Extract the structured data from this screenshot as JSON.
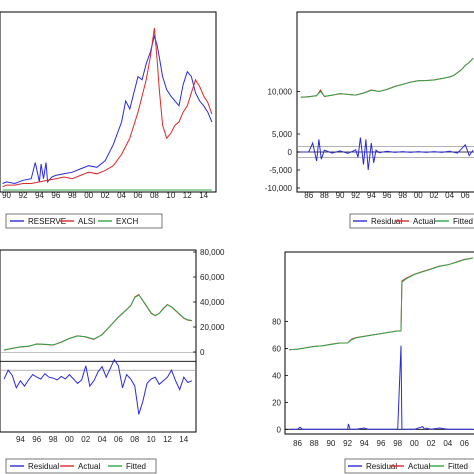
{
  "chart_data": [
    {
      "type": "line",
      "x_ticks": [
        "90",
        "92",
        "94",
        "96",
        "98",
        "00",
        "02",
        "04",
        "06",
        "08",
        "10",
        "12",
        "14"
      ],
      "x_tick_labels": [
        "90",
        "92",
        "94",
        "96",
        "98",
        "00",
        "02",
        "04",
        "06",
        "08",
        "10",
        "12",
        "14"
      ],
      "series": [
        {
          "name": "RESERVE",
          "color": "#2b2bd6",
          "x": [
            1989.5,
            1990,
            1991,
            1992,
            1993,
            1993.5,
            1994,
            1994.2,
            1994.5,
            1994.8,
            1995,
            1995.5,
            1996,
            1997,
            1998,
            1999,
            2000,
            2001,
            2002,
            2003,
            2003.5,
            2004,
            2004.5,
            2005,
            2005.5,
            2006,
            2006.5,
            2007,
            2007.5,
            2008,
            2008.3,
            2008.6,
            2009,
            2009.5,
            2010,
            2010.5,
            2011,
            2011.5,
            2012,
            2012.5,
            2013,
            2013.5,
            2014,
            2014.5,
            2015
          ],
          "y": [
            0.04,
            0.05,
            0.04,
            0.06,
            0.07,
            0.17,
            0.05,
            0.16,
            0.07,
            0.17,
            0.05,
            0.08,
            0.09,
            0.1,
            0.11,
            0.13,
            0.15,
            0.14,
            0.18,
            0.28,
            0.35,
            0.42,
            0.55,
            0.5,
            0.6,
            0.7,
            0.68,
            0.78,
            0.85,
            0.95,
            0.9,
            0.82,
            0.7,
            0.62,
            0.58,
            0.55,
            0.52,
            0.65,
            0.73,
            0.7,
            0.6,
            0.55,
            0.52,
            0.48,
            0.42
          ]
        },
        {
          "name": "ALSI",
          "color": "#d62b2b",
          "x": [
            1989.5,
            1990,
            1991,
            1992,
            1993,
            1994,
            1995,
            1996,
            1997,
            1998,
            1999,
            2000,
            2001,
            2002,
            2003,
            2004,
            2005,
            2006,
            2007,
            2007.5,
            2008,
            2008.3,
            2008.6,
            2009,
            2009.5,
            2010,
            2010.5,
            2011,
            2011.5,
            2012,
            2012.5,
            2013,
            2013.5,
            2014,
            2014.5,
            2015
          ],
          "y": [
            0.02,
            0.03,
            0.03,
            0.04,
            0.04,
            0.05,
            0.06,
            0.07,
            0.08,
            0.07,
            0.09,
            0.11,
            0.1,
            0.12,
            0.15,
            0.22,
            0.32,
            0.48,
            0.68,
            0.82,
            1.0,
            0.82,
            0.62,
            0.4,
            0.32,
            0.35,
            0.4,
            0.42,
            0.48,
            0.52,
            0.6,
            0.68,
            0.64,
            0.58,
            0.54,
            0.47
          ]
        },
        {
          "name": "EXCH",
          "color": "#2fa84a",
          "x": [
            1989.5,
            2015
          ],
          "y": [
            0.0,
            0.0
          ]
        }
      ]
    },
    {
      "type": "line",
      "y_ticks": [
        10000,
        5000,
        0,
        -5000,
        -10000
      ],
      "y_tick_labels": [
        "10,000",
        "5,000",
        "0",
        "-5,000",
        "-10,000"
      ],
      "x_ticks": [
        "86",
        "88",
        "90",
        "92",
        "94",
        "96",
        "98",
        "00",
        "02",
        "04",
        "06"
      ],
      "x_tick_labels": [
        "86",
        "88",
        "90",
        "92",
        "94",
        "96",
        "98",
        "00",
        "02",
        "04",
        "06"
      ],
      "series": [
        {
          "name": "Residual",
          "color": "#2b2bd6",
          "x": [
            1985,
            1986,
            1986.5,
            1987,
            1987.3,
            1987.6,
            1988,
            1989,
            1990,
            1991,
            1992,
            1992.3,
            1992.6,
            1993,
            1993.3,
            1993.6,
            1994,
            1994.3,
            1994.6,
            1995,
            1996,
            1997,
            1998,
            1999,
            2000,
            2001,
            2002,
            2003,
            2004,
            2005,
            2006,
            2006.5,
            2007
          ],
          "y": [
            0,
            0,
            2500,
            -2500,
            3500,
            -2000,
            500,
            -300,
            300,
            -400,
            600,
            -1500,
            4000,
            -3500,
            3500,
            -5000,
            2500,
            -3000,
            500,
            -200,
            200,
            -100,
            100,
            -100,
            100,
            -100,
            100,
            -100,
            200,
            -300,
            2000,
            -1000,
            500
          ]
        },
        {
          "name": "Actual",
          "color": "#d62b2b",
          "x": [
            1985,
            1986,
            1987,
            1987.5,
            1988,
            1989,
            1990,
            1991,
            1992,
            1993,
            1994,
            1995,
            1996,
            1997,
            1998,
            1999,
            2000,
            2001,
            2002,
            2003,
            2004,
            2004.5,
            2005,
            2005.5,
            2006,
            2006.5,
            2007
          ],
          "y": [
            9200,
            9300,
            9400,
            10200,
            9300,
            9500,
            9700,
            9600,
            9500,
            9800,
            10200,
            10000,
            10300,
            10700,
            11000,
            11300,
            11500,
            11500,
            11600,
            11800,
            12000,
            12200,
            12600,
            13000,
            13600,
            14000,
            14600
          ]
        },
        {
          "name": "Fitted",
          "color": "#2fa84a",
          "x": [
            1985,
            1986,
            1987,
            1987.5,
            1988,
            1989,
            1990,
            1991,
            1992,
            1993,
            1994,
            1995,
            1996,
            1997,
            1998,
            1999,
            2000,
            2001,
            2002,
            2003,
            2004,
            2004.5,
            2005,
            2005.5,
            2006,
            2006.5,
            2007
          ],
          "y": [
            9200,
            9250,
            9450,
            10000,
            9350,
            9480,
            9720,
            9580,
            9520,
            9780,
            10150,
            10020,
            10280,
            10680,
            10980,
            11280,
            11480,
            11520,
            11580,
            11780,
            12020,
            12180,
            12580,
            12980,
            13580,
            14020,
            14560
          ]
        }
      ]
    },
    {
      "type": "line",
      "y_ticks": [
        80000,
        60000,
        40000,
        20000,
        0
      ],
      "y_tick_labels": [
        "80,000",
        "60,000",
        "40,000",
        "20,000",
        "0"
      ],
      "x_ticks": [
        "94",
        "96",
        "98",
        "00",
        "02",
        "04",
        "06",
        "08",
        "10",
        "12",
        "14"
      ],
      "x_tick_labels": [
        "94",
        "96",
        "98",
        "00",
        "02",
        "04",
        "06",
        "08",
        "10",
        "12",
        "14"
      ],
      "series": [
        {
          "name": "Residual",
          "color": "#2b2bd6",
          "x": [
            1992,
            1992.5,
            1993,
            1993.5,
            1994,
            1994.5,
            1995,
            1995.5,
            1996,
            1996.5,
            1997,
            1997.5,
            1998,
            1998.5,
            1999,
            1999.5,
            2000,
            2000.5,
            2001,
            2001.5,
            2002,
            2002.5,
            2003,
            2003.5,
            2004,
            2004.5,
            2005,
            2005.5,
            2006,
            2006.5,
            2007,
            2007.5,
            2008,
            2008.5,
            2009,
            2009.5,
            2010,
            2010.5,
            2011,
            2011.5,
            2012,
            2012.5,
            2013,
            2013.5,
            2014,
            2014.5,
            2015
          ],
          "y": [
            -20000,
            -10000,
            -16000,
            -30000,
            -22000,
            -28000,
            -21000,
            -15000,
            -18000,
            -20000,
            -14000,
            -18000,
            -19000,
            -21000,
            -17000,
            -20000,
            -15000,
            -20000,
            -25000,
            -21000,
            -5000,
            -28000,
            -22000,
            -12000,
            -6000,
            -18000,
            -8000,
            2000,
            -5000,
            -30000,
            -15000,
            -20000,
            -28000,
            -60000,
            -45000,
            -25000,
            -20000,
            -18000,
            -26000,
            -22000,
            -18000,
            -10000,
            -22000,
            -32000,
            -18000,
            -24000,
            -22000
          ]
        },
        {
          "name": "Actual",
          "color": "#d62b2b",
          "x": [
            1992,
            1993,
            1994,
            1995,
            1996,
            1997,
            1998,
            1999,
            2000,
            2001,
            2002,
            2003,
            2004,
            2005,
            2006,
            2007,
            2007.5,
            2008,
            2008.5,
            2009,
            2009.5,
            2010,
            2010.5,
            2011,
            2011.5,
            2012,
            2012.5,
            2013,
            2013.5,
            2014,
            2014.5,
            2015
          ],
          "y": [
            1500,
            3000,
            4000,
            4500,
            6500,
            6000,
            5500,
            8000,
            11000,
            13000,
            12000,
            10000,
            14000,
            21000,
            28000,
            34000,
            37000,
            44000,
            46000,
            41000,
            36000,
            31000,
            29000,
            31000,
            35000,
            38000,
            36000,
            33000,
            30000,
            27000,
            25500,
            25000
          ]
        },
        {
          "name": "Fitted",
          "color": "#2fa84a",
          "x": [
            1992,
            1993,
            1994,
            1995,
            1996,
            1997,
            1998,
            1999,
            2000,
            2001,
            2002,
            2003,
            2004,
            2005,
            2006,
            2007,
            2007.5,
            2008,
            2008.5,
            2009,
            2009.5,
            2010,
            2010.5,
            2011,
            2011.5,
            2012,
            2012.5,
            2013,
            2013.5,
            2014,
            2014.5,
            2015
          ],
          "y": [
            1700,
            2800,
            4200,
            4700,
            6300,
            6200,
            5700,
            7800,
            10800,
            12800,
            12200,
            10300,
            13800,
            20800,
            27800,
            33800,
            37200,
            43600,
            45500,
            41300,
            36400,
            31400,
            29200,
            30800,
            34600,
            37800,
            36200,
            33300,
            30300,
            27300,
            25800,
            25200
          ]
        }
      ]
    },
    {
      "type": "line",
      "y_ticks": [
        80,
        60,
        40,
        20,
        0
      ],
      "y_tick_labels": [
        "80",
        "60",
        "40",
        "20",
        "0"
      ],
      "x_ticks": [
        "86",
        "88",
        "90",
        "92",
        "94",
        "96",
        "98",
        "00",
        "02",
        "04",
        "06"
      ],
      "x_tick_labels": [
        "86",
        "88",
        "90",
        "92",
        "94",
        "96",
        "98",
        "00",
        "02",
        "04",
        "06"
      ],
      "series": [
        {
          "name": "Residual",
          "color": "#2b2bd6",
          "x": [
            1985,
            1986,
            1986.3,
            1986.6,
            1988,
            1990,
            1991,
            1992,
            1992.1,
            1992.3,
            1993,
            1994,
            1994.5,
            1995,
            1996,
            1998,
            1998.4,
            1998.5,
            1998.7,
            1999,
            2000,
            2001,
            2001.2,
            2001.4,
            2002,
            2003,
            2004,
            2005,
            2006,
            2007
          ],
          "y": [
            0,
            0,
            1.5,
            0,
            0,
            0,
            0,
            0,
            4,
            0,
            0,
            1,
            0,
            0,
            0,
            0,
            62,
            0,
            0,
            0,
            0,
            2,
            0,
            1,
            0,
            1,
            0,
            0,
            0,
            0
          ]
        },
        {
          "name": "Actual",
          "color": "#d62b2b",
          "x": [
            1985,
            1986,
            1987,
            1988,
            1989,
            1990,
            1991,
            1992,
            1992.5,
            1993,
            1994,
            1995,
            1996,
            1997,
            1998,
            1998.4,
            1998.5,
            1999,
            2000,
            2001,
            2002,
            2003,
            2004,
            2005,
            2006,
            2007
          ],
          "y": [
            59,
            59.5,
            60.5,
            61.5,
            62,
            63,
            64,
            64,
            67,
            68,
            69,
            70,
            71,
            72,
            73,
            73,
            110,
            112,
            115,
            117,
            119,
            121,
            122,
            124,
            126,
            127
          ]
        },
        {
          "name": "Fitted",
          "color": "#2fa84a",
          "x": [
            1985,
            1986,
            1987,
            1988,
            1989,
            1990,
            1991,
            1992,
            1992.5,
            1993,
            1994,
            1995,
            1996,
            1997,
            1998,
            1998.4,
            1998.5,
            1999,
            2000,
            2001,
            2002,
            2003,
            2004,
            2005,
            2006,
            2007
          ],
          "y": [
            59,
            59.4,
            60.4,
            61.4,
            62,
            62.9,
            63.9,
            64,
            66.5,
            67.8,
            68.9,
            69.9,
            71,
            72,
            72.9,
            73,
            109,
            111.5,
            114.8,
            116.8,
            118.8,
            120.8,
            122,
            123.8,
            125.8,
            127
          ]
        }
      ]
    }
  ]
}
